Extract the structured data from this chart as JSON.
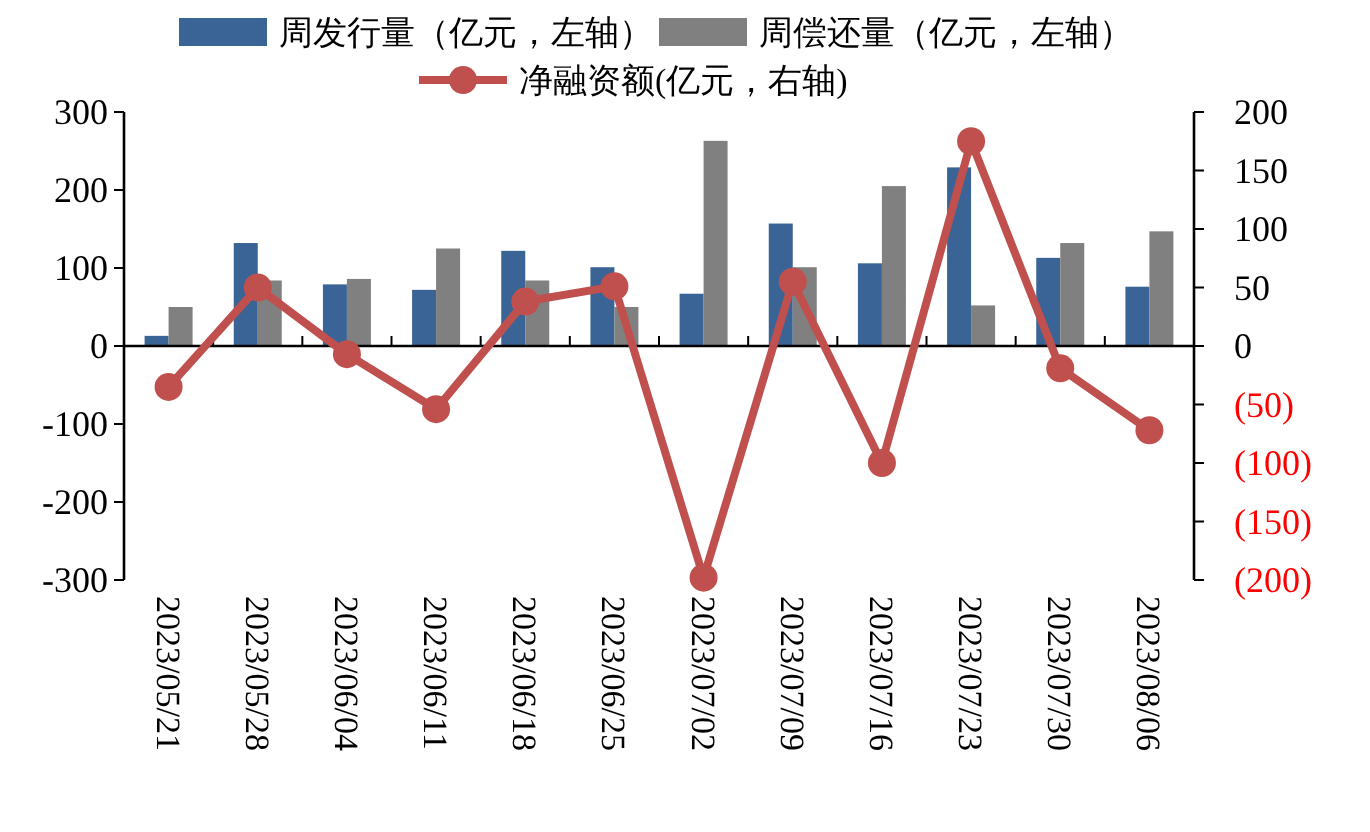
{
  "chart_data": {
    "type": "bar",
    "categories": [
      "2023/05/21",
      "2023/05/28",
      "2023/06/04",
      "2023/06/11",
      "2023/06/18",
      "2023/06/25",
      "2023/07/02",
      "2023/07/09",
      "2023/07/16",
      "2023/07/23",
      "2023/07/30",
      "2023/08/06"
    ],
    "series": [
      {
        "name": "周发行量（亿元，左轴）",
        "color": "#3a6496",
        "values": [
          13,
          132,
          79,
          72,
          122,
          101,
          67,
          157,
          106,
          229,
          113,
          76
        ]
      },
      {
        "name": "周偿还量（亿元，左轴）",
        "color": "#808080",
        "values": [
          50,
          84,
          86,
          125,
          84,
          50,
          263,
          101,
          205,
          52,
          132,
          147
        ]
      },
      {
        "name": "净融资额(亿元，右轴)",
        "type": "line",
        "axis": "y2",
        "color": "#c0504d",
        "values": [
          -35,
          50,
          -7,
          -54,
          38,
          51,
          -198,
          55,
          -100,
          175,
          -19,
          -72
        ]
      }
    ],
    "ylim": [
      -300,
      300
    ],
    "yticks": [
      -300,
      -200,
      -100,
      0,
      100,
      200,
      300
    ],
    "y2lim": [
      -200,
      200
    ],
    "y2ticks": [
      {
        "value": -200,
        "label": "(200)"
      },
      {
        "value": -150,
        "label": "(150)"
      },
      {
        "value": -100,
        "label": "(100)"
      },
      {
        "value": -50,
        "label": "(50)"
      },
      0,
      50,
      100,
      150,
      200
    ],
    "legend": "top",
    "marker": "circle"
  }
}
